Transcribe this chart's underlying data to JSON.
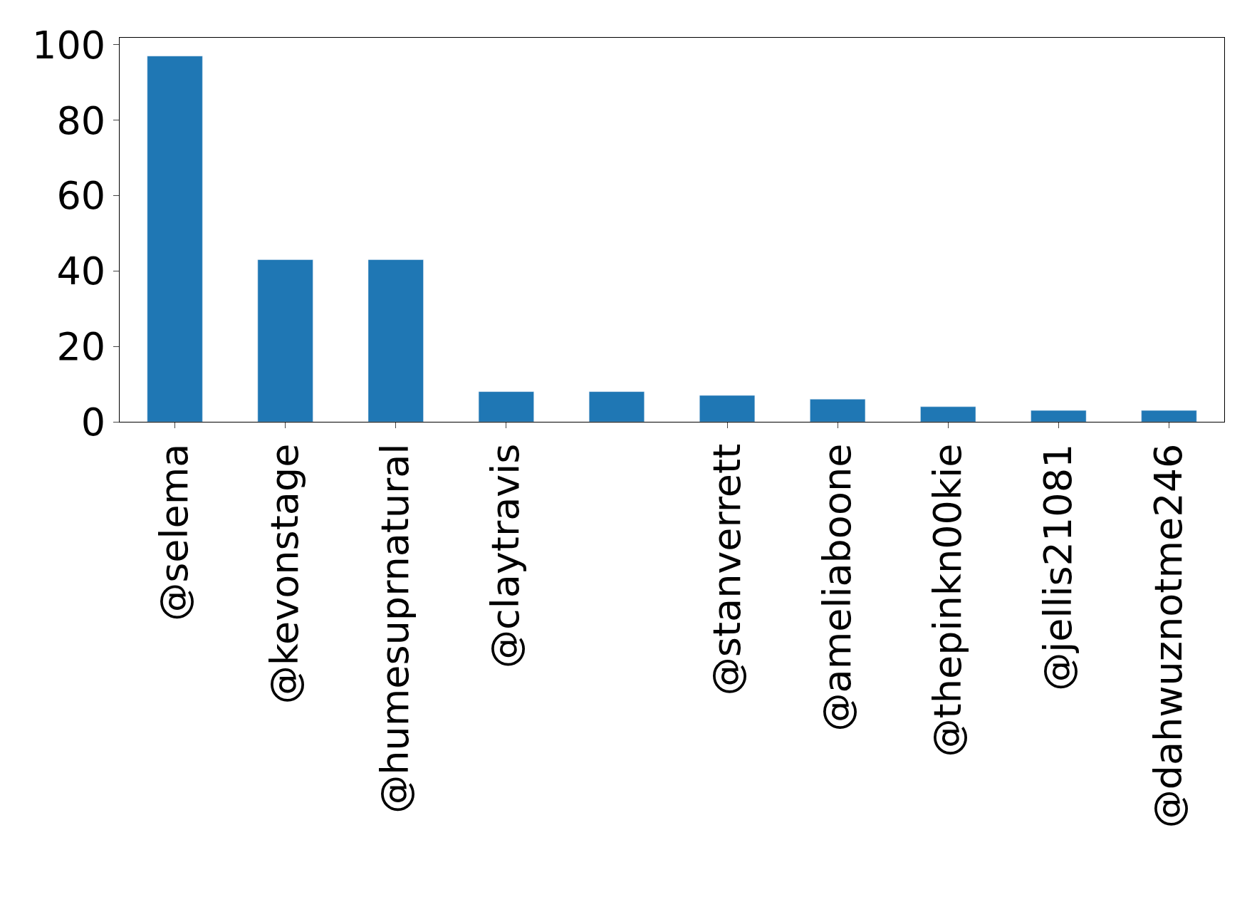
{
  "chart_data": {
    "type": "bar",
    "categories": [
      "@selema",
      "@kevonstage",
      "@humesuprnatural",
      "@claytravis",
      null,
      "@stanverrett",
      "@ameliaboone",
      "@thepinkn00kie",
      "@jellis21081",
      "@dahwuznotme246"
    ],
    "values": [
      97,
      43,
      43,
      8,
      8,
      7,
      6,
      4,
      3,
      3
    ],
    "color": "#1f77b4",
    "ylim": [
      0,
      101.85
    ],
    "yticks": [
      0,
      20,
      40,
      60,
      80,
      100
    ],
    "legend": false
  }
}
